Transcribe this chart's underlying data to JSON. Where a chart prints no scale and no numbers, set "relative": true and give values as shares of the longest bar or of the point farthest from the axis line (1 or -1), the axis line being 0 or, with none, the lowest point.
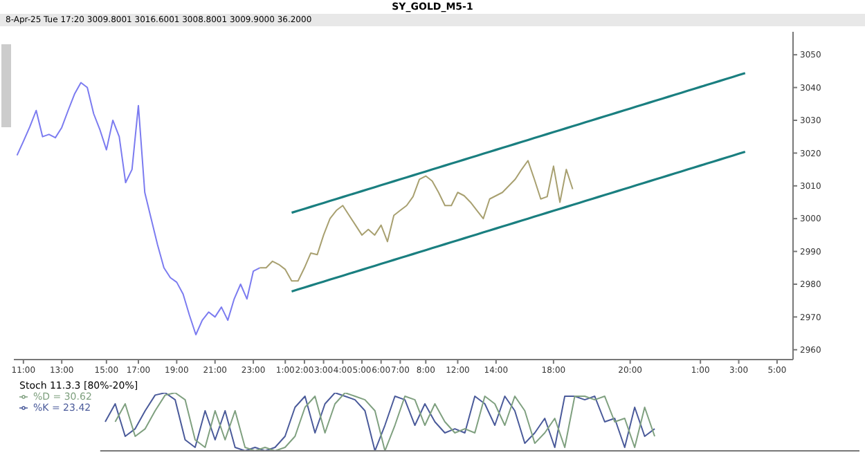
{
  "chart_data": [
    {
      "type": "line",
      "title": "SY_GOLD_M5-1",
      "subtitle": "8-Apr-25 Tue 17:20   3009.8001   3016.6001   3008.8001   3009.9000   36.2000",
      "categories": [
        null,
        "11:00",
        null,
        null,
        null,
        null,
        null,
        "13:00",
        null,
        null,
        null,
        null,
        null,
        null,
        "15:00",
        null,
        null,
        null,
        null,
        "17:00",
        null,
        null,
        null,
        null,
        null,
        "19:00",
        null,
        null,
        null,
        null,
        null,
        "21:00",
        null,
        null,
        null,
        null,
        null,
        "23:00",
        null,
        null,
        null,
        null,
        "1:00",
        null,
        null,
        "2:00",
        null,
        null,
        "3:00",
        null,
        null,
        "4:00",
        null,
        null,
        "5:00",
        null,
        null,
        "6:00",
        null,
        null,
        "7:00",
        null,
        null,
        null,
        "8:00",
        null,
        null,
        null,
        null,
        "12:00",
        null,
        null,
        null,
        null,
        null,
        "14:00",
        null,
        null,
        null,
        null,
        null,
        null,
        null,
        null,
        "18:00",
        null,
        null,
        null,
        null,
        null,
        null,
        null,
        null,
        null,
        null,
        null,
        "20:00",
        null,
        null,
        null,
        null,
        null,
        null,
        null,
        null,
        null,
        null,
        "1:00",
        null,
        null,
        null,
        null,
        null,
        "3:00",
        null,
        null,
        null,
        null,
        null,
        "5:00",
        null,
        null
      ],
      "ylim": [
        2957,
        3057
      ],
      "yticks": [
        2960,
        2970,
        2980,
        2990,
        3000,
        3010,
        3020,
        3030,
        3040,
        3050
      ],
      "series": [
        {
          "color": "#7b7bf0",
          "values": [
            3019.3,
            3023.6,
            3028,
            3033,
            3025,
            3025.7,
            3024.7,
            3027.8,
            3033,
            3038,
            3041.5,
            3040,
            3032,
            3027,
            3021,
            3030,
            3025,
            3011,
            3015,
            3034.5,
            3008,
            3000,
            2992,
            2985,
            2982,
            2980.6,
            2977,
            2970.5,
            2964.6,
            2969,
            2971.5,
            2970,
            2973,
            2969,
            2975.5,
            2980,
            2975.5,
            2984,
            2985,
            null,
            null,
            null,
            null,
            null,
            null,
            null,
            null,
            null,
            null,
            null,
            null,
            null,
            null,
            null,
            null,
            null,
            null,
            null,
            null,
            null,
            null,
            null,
            null,
            null,
            null,
            null,
            null,
            null,
            null,
            null,
            null,
            null,
            null,
            null,
            null,
            null,
            null,
            null,
            null,
            null,
            null,
            null,
            null,
            null,
            null,
            null,
            null,
            null,
            null,
            null,
            null,
            null,
            null,
            null,
            null,
            null,
            null,
            null,
            null,
            null,
            null,
            null,
            null,
            null,
            null,
            null,
            null,
            null,
            null,
            null,
            null,
            null,
            null,
            null,
            null,
            null,
            null,
            null,
            null,
            null,
            null,
            null
          ]
        },
        {
          "color": "#a8a070",
          "values": [
            null,
            null,
            null,
            null,
            null,
            null,
            null,
            null,
            null,
            null,
            null,
            null,
            null,
            null,
            null,
            null,
            null,
            null,
            null,
            null,
            null,
            null,
            null,
            null,
            null,
            null,
            null,
            null,
            null,
            null,
            null,
            null,
            null,
            null,
            null,
            null,
            null,
            null,
            2985,
            2985,
            2987,
            2986,
            2984.5,
            2981,
            2981,
            2985,
            2989.5,
            2989,
            2995,
            3000,
            3002.5,
            3004,
            3001,
            2998,
            2995,
            2996.7,
            2995,
            2998,
            2993,
            3001,
            3002.5,
            3004,
            3006.7,
            3012,
            3013,
            3011.5,
            3008,
            3004,
            3004,
            3008,
            3007,
            3005,
            3002.5,
            3000,
            3006,
            3007,
            3008,
            3010,
            3012,
            3015,
            3017.7,
            3012,
            3006,
            3006.7,
            3016,
            3005,
            3015,
            3009,
            null,
            null,
            null,
            null,
            null,
            null,
            null,
            null,
            null,
            null,
            null,
            null,
            null,
            null,
            null,
            null,
            null,
            null,
            null,
            null,
            null,
            null,
            null,
            null,
            null,
            null,
            null,
            null,
            null,
            null,
            null,
            null,
            null,
            null
          ]
        },
        {
          "color": "#1a7f80",
          "values": [
            null,
            null,
            null,
            null,
            null,
            null,
            null,
            null,
            null,
            null,
            null,
            null,
            null,
            null,
            null,
            null,
            null,
            null,
            null,
            null,
            null,
            null,
            null,
            null,
            null,
            null,
            null,
            null,
            null,
            null,
            null,
            null,
            null,
            null,
            null,
            null,
            null,
            null,
            null,
            null,
            null,
            null,
            null,
            3001.8,
            3002.4,
            3003,
            3003.6,
            3004.2,
            3004.8,
            3005.4,
            3006,
            3006.6,
            3007.2,
            3007.8,
            3008.4,
            3009,
            3009.6,
            3010.2,
            3010.8,
            3011.4,
            3012,
            3012.6,
            3013.2,
            3013.8,
            3014.4,
            3015,
            3015.6,
            3016.2,
            3016.8,
            3017.4,
            3018,
            3018.6,
            3019.2,
            3019.8,
            3020.4,
            3021,
            3021.6,
            3022.2,
            3022.8,
            3023.4,
            3024,
            3024.6,
            3025.2,
            3025.8,
            3026.4,
            3027,
            3027.6,
            3028.2,
            3028.8,
            3029.4,
            3030,
            3030.6,
            3031.2,
            3031.8,
            3032.4,
            3033,
            3033.6,
            3034.2,
            3034.8,
            3035.4,
            3036,
            3036.6,
            3037.2,
            3037.8,
            3038.4,
            3039,
            3039.6,
            3040.2,
            3040.8,
            3041.4,
            3042,
            3042.6,
            3043.2,
            3043.8,
            3044.4,
            null,
            null,
            null,
            null,
            null,
            null,
            null
          ]
        },
        {
          "color": "#1a7f80",
          "values": [
            null,
            null,
            null,
            null,
            null,
            null,
            null,
            null,
            null,
            null,
            null,
            null,
            null,
            null,
            null,
            null,
            null,
            null,
            null,
            null,
            null,
            null,
            null,
            null,
            null,
            null,
            null,
            null,
            null,
            null,
            null,
            null,
            null,
            null,
            null,
            null,
            null,
            null,
            null,
            null,
            null,
            null,
            null,
            2977.8,
            2978.4,
            2979,
            2979.6,
            2980.2,
            2980.8,
            2981.4,
            2982,
            2982.6,
            2983.2,
            2983.8,
            2984.4,
            2985,
            2985.6,
            2986.2,
            2986.8,
            2987.4,
            2988,
            2988.6,
            2989.2,
            2989.8,
            2990.4,
            2991,
            2991.6,
            2992.2,
            2992.8,
            2993.4,
            2994,
            2994.6,
            2995.2,
            2995.8,
            2996.4,
            2997,
            2997.6,
            2998.2,
            2998.8,
            2999.4,
            3000,
            3000.6,
            3001.2,
            3001.8,
            3002.4,
            3003,
            3003.6,
            3004.2,
            3004.8,
            3005.4,
            3006,
            3006.6,
            3007.2,
            3007.8,
            3008.4,
            3009,
            3009.6,
            3010.2,
            3010.8,
            3011.4,
            3012,
            3012.6,
            3013.2,
            3013.8,
            3014.4,
            3015,
            3015.6,
            3016.2,
            3016.8,
            3017.4,
            3018,
            3018.6,
            3019.2,
            3019.8,
            3020.4,
            null,
            null,
            null,
            null,
            null,
            null,
            null
          ]
        }
      ]
    },
    {
      "type": "line",
      "title": "Stoch 11.3.3 [80%-20%]",
      "relative": true,
      "legend": "top left",
      "categories": [
        null,
        null,
        null,
        null,
        null,
        null,
        null,
        null,
        null,
        null,
        null,
        null,
        null,
        null,
        null,
        null,
        null,
        null,
        null,
        null,
        null,
        null,
        null,
        null,
        null,
        null,
        null,
        null,
        null,
        null,
        null,
        null,
        null,
        null,
        null,
        null,
        null,
        null,
        null,
        null,
        null,
        null,
        null,
        null,
        null,
        null,
        null,
        null,
        null,
        null,
        null,
        null,
        null,
        null,
        null,
        null,
        null,
        null,
        null,
        null,
        null,
        null,
        null,
        null,
        null,
        null,
        null,
        null,
        null,
        null,
        null,
        null,
        null,
        null,
        null,
        null
      ],
      "series": [
        {
          "name": "%K = 23.42",
          "color": "#4a5a9a",
          "values": [
            0.5,
            0.81,
            0.25,
            0.38,
            0.69,
            0.96,
            1,
            0.88,
            0.19,
            0.06,
            0.69,
            0.19,
            0.69,
            0.06,
            0,
            0.06,
            0,
            0.06,
            0.25,
            0.75,
            0.94,
            0.31,
            0.81,
            1,
            0.94,
            0.88,
            0.69,
            0,
            0.44,
            0.94,
            0.88,
            0.44,
            0.81,
            0.5,
            0.31,
            0.38,
            0.31,
            0.94,
            0.81,
            0.44,
            0.94,
            0.69,
            0.13,
            0.31,
            0.56,
            0.06,
            0.94,
            0.94,
            0.88,
            0.94,
            0.5,
            0.56,
            0.06,
            0.75,
            0.25,
            0.38,
            null,
            null,
            null,
            null,
            null,
            null,
            null,
            null,
            null,
            null,
            null,
            null,
            null,
            null,
            null,
            null,
            null,
            null,
            null,
            null
          ]
        },
        {
          "name": "%D = 30.62",
          "color": "#7fa07f",
          "values": [
            null,
            0.5,
            0.81,
            0.25,
            0.38,
            0.69,
            0.96,
            1,
            0.88,
            0.19,
            0.06,
            0.69,
            0.19,
            0.69,
            0.06,
            0,
            0.06,
            0,
            0.06,
            0.25,
            0.75,
            0.94,
            0.31,
            0.81,
            1,
            0.94,
            0.88,
            0.69,
            0,
            0.44,
            0.94,
            0.88,
            0.44,
            0.81,
            0.5,
            0.31,
            0.38,
            0.31,
            0.94,
            0.81,
            0.44,
            0.94,
            0.69,
            0.13,
            0.31,
            0.56,
            0.06,
            0.94,
            0.94,
            0.88,
            0.94,
            0.5,
            0.56,
            0.06,
            0.75,
            0.25,
            null,
            null,
            null,
            null,
            null,
            null,
            null,
            null,
            null,
            null,
            null,
            null,
            null,
            null,
            null,
            null,
            null,
            null,
            null,
            null
          ]
        }
      ]
    }
  ]
}
